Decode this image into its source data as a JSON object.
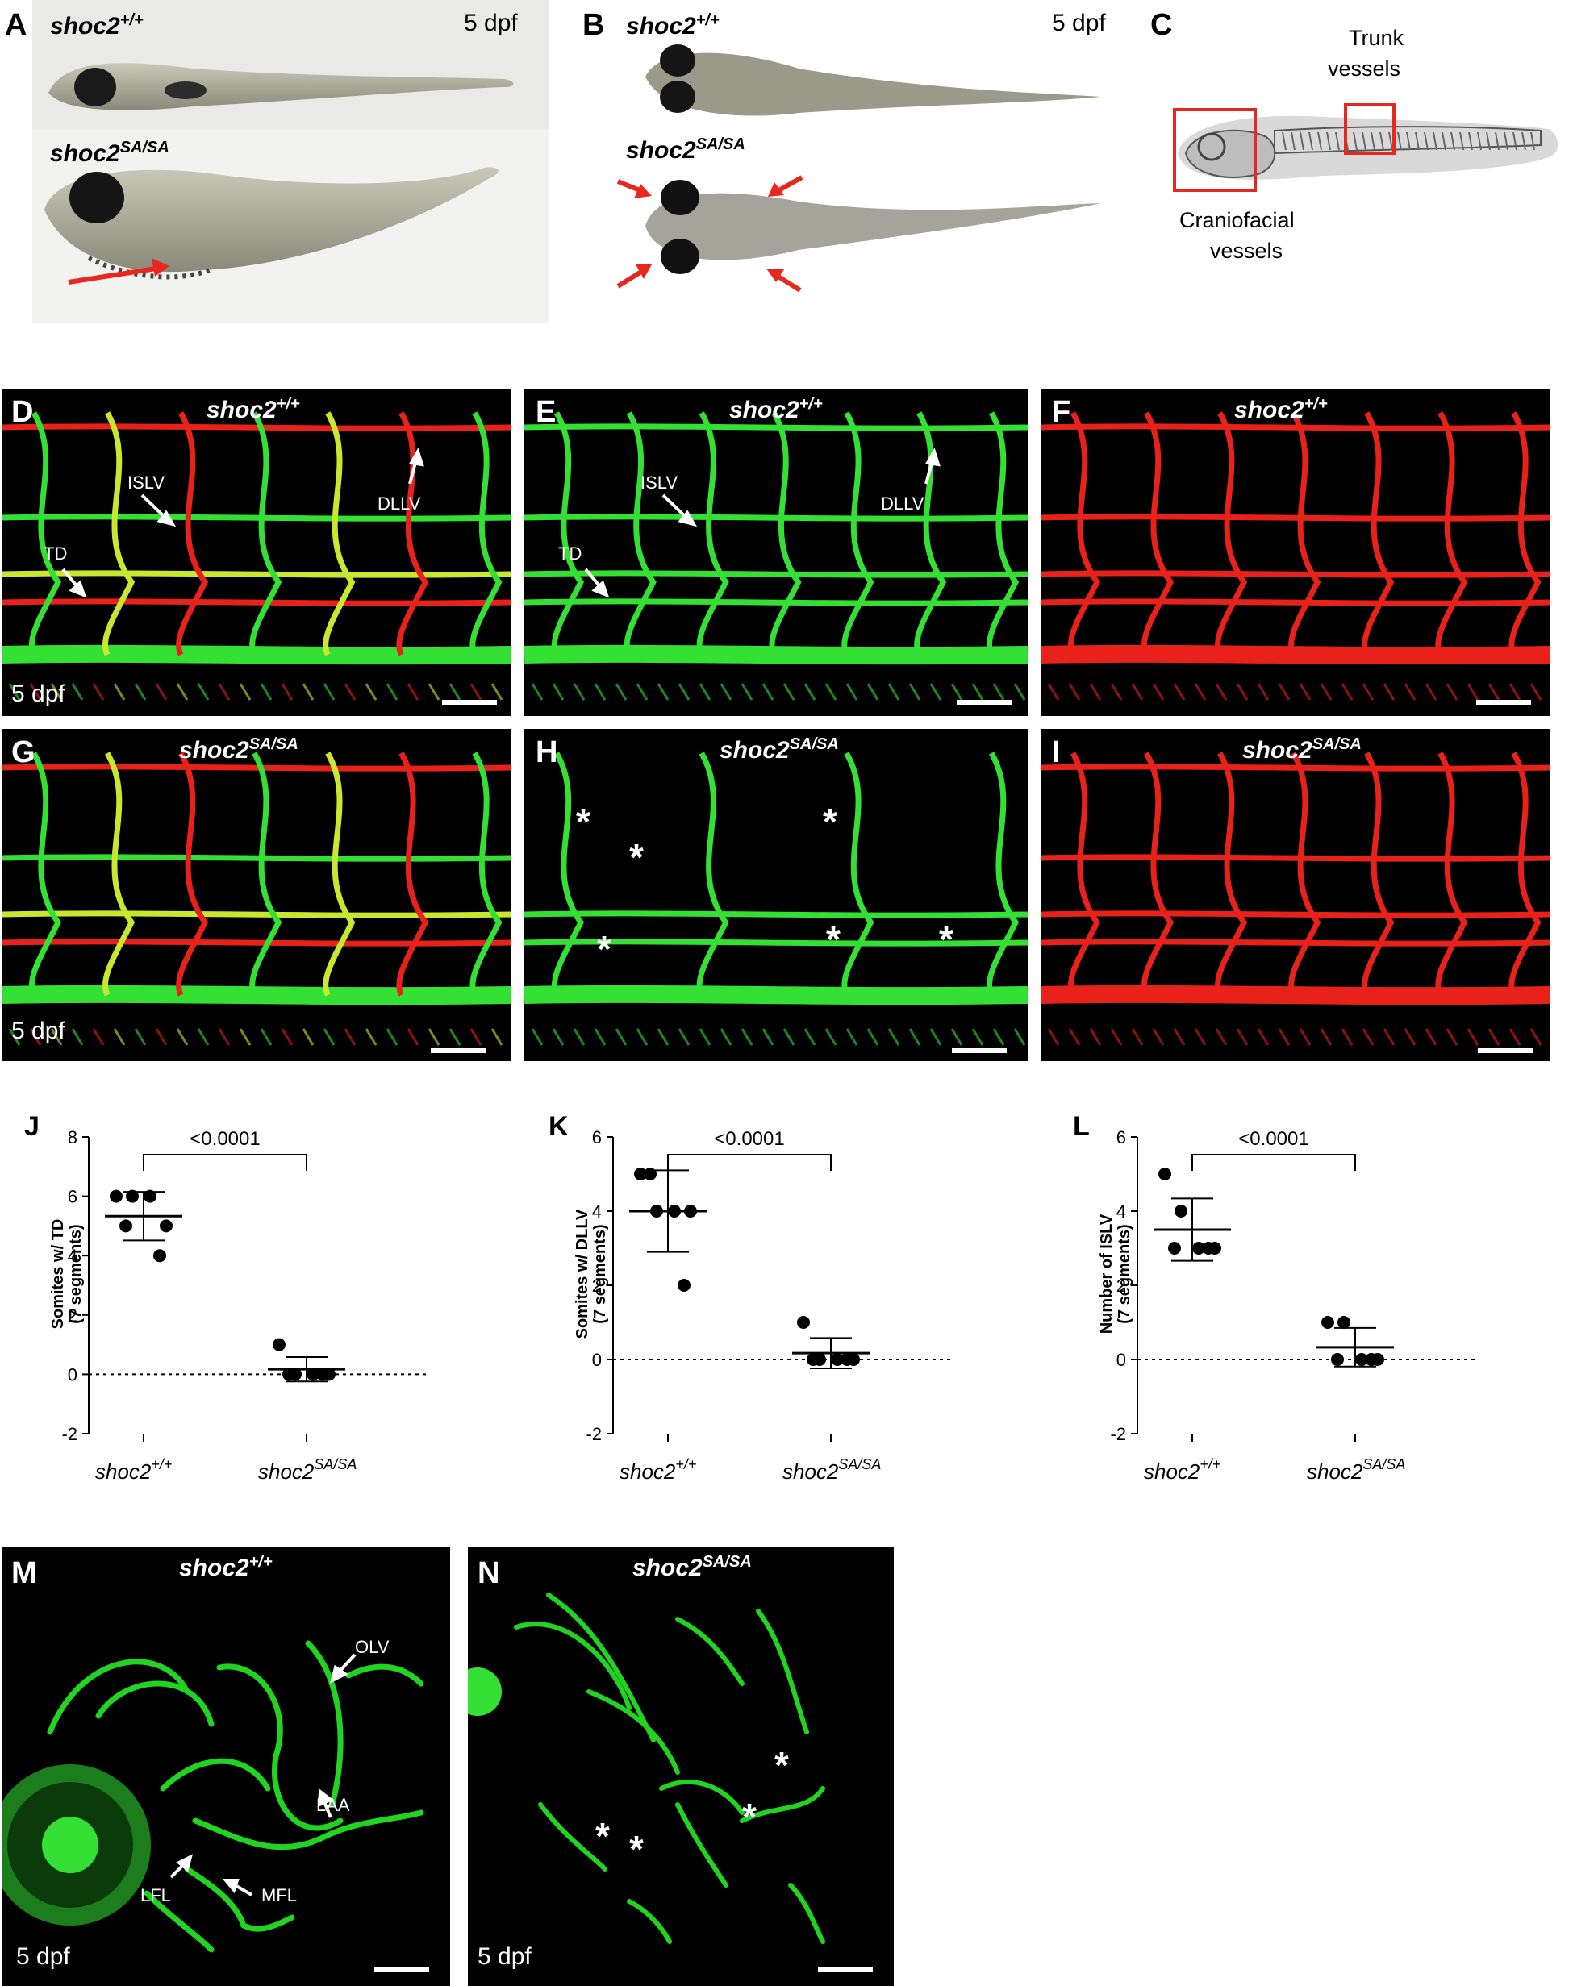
{
  "panels": {
    "A": {
      "label": "A",
      "wt": "shoc2",
      "wt_sup": "+/+",
      "mut": "shoc2",
      "mut_sup": "SA/SA",
      "stage": "5 dpf"
    },
    "B": {
      "label": "B",
      "wt": "shoc2",
      "wt_sup": "+/+",
      "mut": "shoc2",
      "mut_sup": "SA/SA",
      "stage": "5 dpf"
    },
    "C": {
      "label": "C",
      "trunk_line1": "Trunk",
      "trunk_line2": "vessels",
      "cranio_line1": "Craniofacial",
      "cranio_line2": "vessels"
    },
    "D": {
      "label": "D",
      "geno": "shoc2",
      "sup": "+/+",
      "stage": "5 dpf",
      "islv": "ISLV",
      "dllv": "DLLV",
      "td": "TD"
    },
    "E": {
      "label": "E",
      "geno": "shoc2",
      "sup": "+/+",
      "islv": "ISLV",
      "dllv": "DLLV",
      "td": "TD"
    },
    "F": {
      "label": "F",
      "geno": "shoc2",
      "sup": "+/+"
    },
    "G": {
      "label": "G",
      "geno": "shoc2",
      "sup": "SA/SA",
      "stage": "5 dpf"
    },
    "H": {
      "label": "H",
      "geno": "shoc2",
      "sup": "SA/SA",
      "star": "*"
    },
    "I": {
      "label": "I",
      "geno": "shoc2",
      "sup": "SA/SA"
    },
    "M": {
      "label": "M",
      "geno": "shoc2",
      "sup": "+/+",
      "stage": "5 dpf",
      "olv": "OLV",
      "laa": "LAA",
      "lfl": "LFL",
      "mfl": "MFL"
    },
    "N": {
      "label": "N",
      "geno": "shoc2",
      "sup": "SA/SA",
      "stage": "5 dpf",
      "star": "*"
    }
  },
  "chart_data": [
    {
      "panel": "J",
      "type": "scatter",
      "ylabel_line1": "Somites w/ TD",
      "ylabel_line2": "(7 segments)",
      "categories": [
        "shoc2+/+",
        "shoc2SA/SA"
      ],
      "cat_base": "shoc2",
      "cat_sups": [
        "+/+",
        "SA/SA"
      ],
      "ylim": [
        -2,
        8
      ],
      "yticks": [
        8,
        6,
        4,
        2,
        0,
        -2
      ],
      "p_value": "<0.0001",
      "series": [
        {
          "values": [
            6,
            6,
            6,
            5,
            5,
            4
          ],
          "mean": 5.33,
          "sd": 0.82
        },
        {
          "values": [
            1,
            0,
            0,
            0,
            0,
            0
          ],
          "mean": 0.17,
          "sd": 0.41
        }
      ],
      "colors": {
        "points": "#000000"
      }
    },
    {
      "panel": "K",
      "type": "scatter",
      "ylabel_line1": "Somites w/ DLLV",
      "ylabel_line2": "(7 segments)",
      "categories": [
        "shoc2+/+",
        "shoc2SA/SA"
      ],
      "cat_base": "shoc2",
      "cat_sups": [
        "+/+",
        "SA/SA"
      ],
      "ylim": [
        -2,
        6
      ],
      "yticks": [
        6,
        4,
        2,
        0,
        -2
      ],
      "p_value": "<0.0001",
      "series": [
        {
          "values": [
            5,
            4,
            4,
            4,
            5,
            2
          ],
          "mean": 4.0,
          "sd": 1.1
        },
        {
          "values": [
            1,
            0,
            0,
            0,
            0,
            0
          ],
          "mean": 0.17,
          "sd": 0.41
        }
      ],
      "colors": {
        "points": "#000000"
      }
    },
    {
      "panel": "L",
      "type": "scatter",
      "ylabel_line1": "Number of ISLV",
      "ylabel_line2": "(7 segments)",
      "categories": [
        "shoc2+/+",
        "shoc2SA/SA"
      ],
      "cat_base": "shoc2",
      "cat_sups": [
        "+/+",
        "SA/SA"
      ],
      "ylim": [
        -2,
        6
      ],
      "yticks": [
        6,
        4,
        2,
        0,
        -2
      ],
      "p_value": "<0.0001",
      "series": [
        {
          "values": [
            5,
            4,
            3,
            3,
            3,
            3
          ],
          "mean": 3.5,
          "sd": 0.84
        },
        {
          "values": [
            1,
            1,
            0,
            0,
            0,
            0
          ],
          "mean": 0.33,
          "sd": 0.52
        }
      ],
      "colors": {
        "points": "#000000"
      }
    }
  ]
}
